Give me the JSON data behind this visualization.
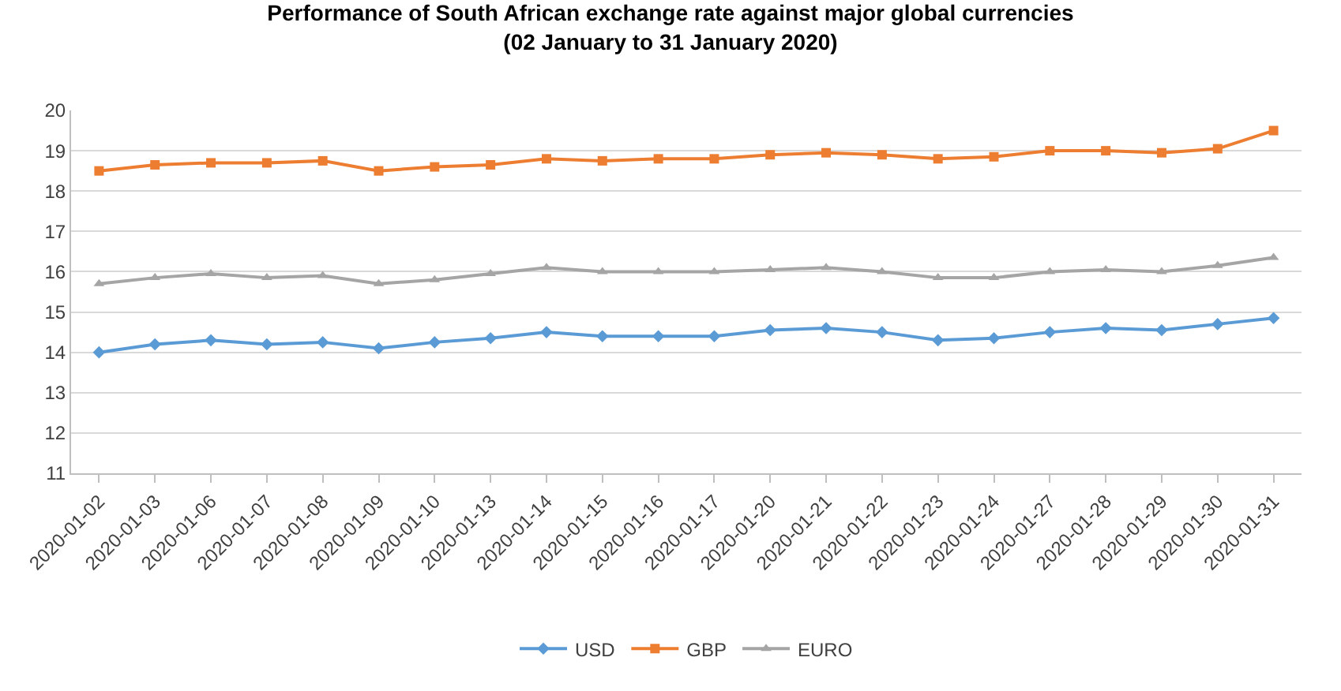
{
  "chart_data": {
    "type": "line",
    "title": "Performance of South African exchange rate against major global currencies\n(02 January to 31 January 2020)",
    "categories": [
      "2020-01-02",
      "2020-01-03",
      "2020-01-06",
      "2020-01-07",
      "2020-01-08",
      "2020-01-09",
      "2020-01-10",
      "2020-01-13",
      "2020-01-14",
      "2020-01-15",
      "2020-01-16",
      "2020-01-17",
      "2020-01-20",
      "2020-01-21",
      "2020-01-22",
      "2020-01-23",
      "2020-01-24",
      "2020-01-27",
      "2020-01-28",
      "2020-01-29",
      "2020-01-30",
      "2020-01-31"
    ],
    "series": [
      {
        "name": "USD",
        "color": "#5b9bd5",
        "marker": "diamond",
        "values": [
          14.0,
          14.2,
          14.3,
          14.2,
          14.25,
          14.1,
          14.25,
          14.35,
          14.5,
          14.4,
          14.4,
          14.4,
          14.55,
          14.6,
          14.5,
          14.3,
          14.35,
          14.5,
          14.6,
          14.55,
          14.7,
          14.85
        ]
      },
      {
        "name": "GBP",
        "color": "#ed7d31",
        "marker": "square",
        "values": [
          18.5,
          18.65,
          18.7,
          18.7,
          18.75,
          18.5,
          18.6,
          18.65,
          18.8,
          18.75,
          18.8,
          18.8,
          18.9,
          18.95,
          18.9,
          18.8,
          18.85,
          19.0,
          19.0,
          18.95,
          19.05,
          19.5
        ]
      },
      {
        "name": "EURO",
        "color": "#a5a5a5",
        "marker": "triangle",
        "values": [
          15.7,
          15.85,
          15.95,
          15.85,
          15.9,
          15.7,
          15.8,
          15.95,
          16.1,
          16.0,
          16.0,
          16.0,
          16.05,
          16.1,
          16.0,
          15.85,
          15.85,
          16.0,
          16.05,
          16.0,
          16.15,
          16.35
        ]
      }
    ],
    "ylim": [
      11,
      20
    ],
    "yticks": [
      11,
      12,
      13,
      14,
      15,
      16,
      17,
      18,
      19,
      20
    ],
    "grid": "y",
    "legend": "bottom"
  }
}
